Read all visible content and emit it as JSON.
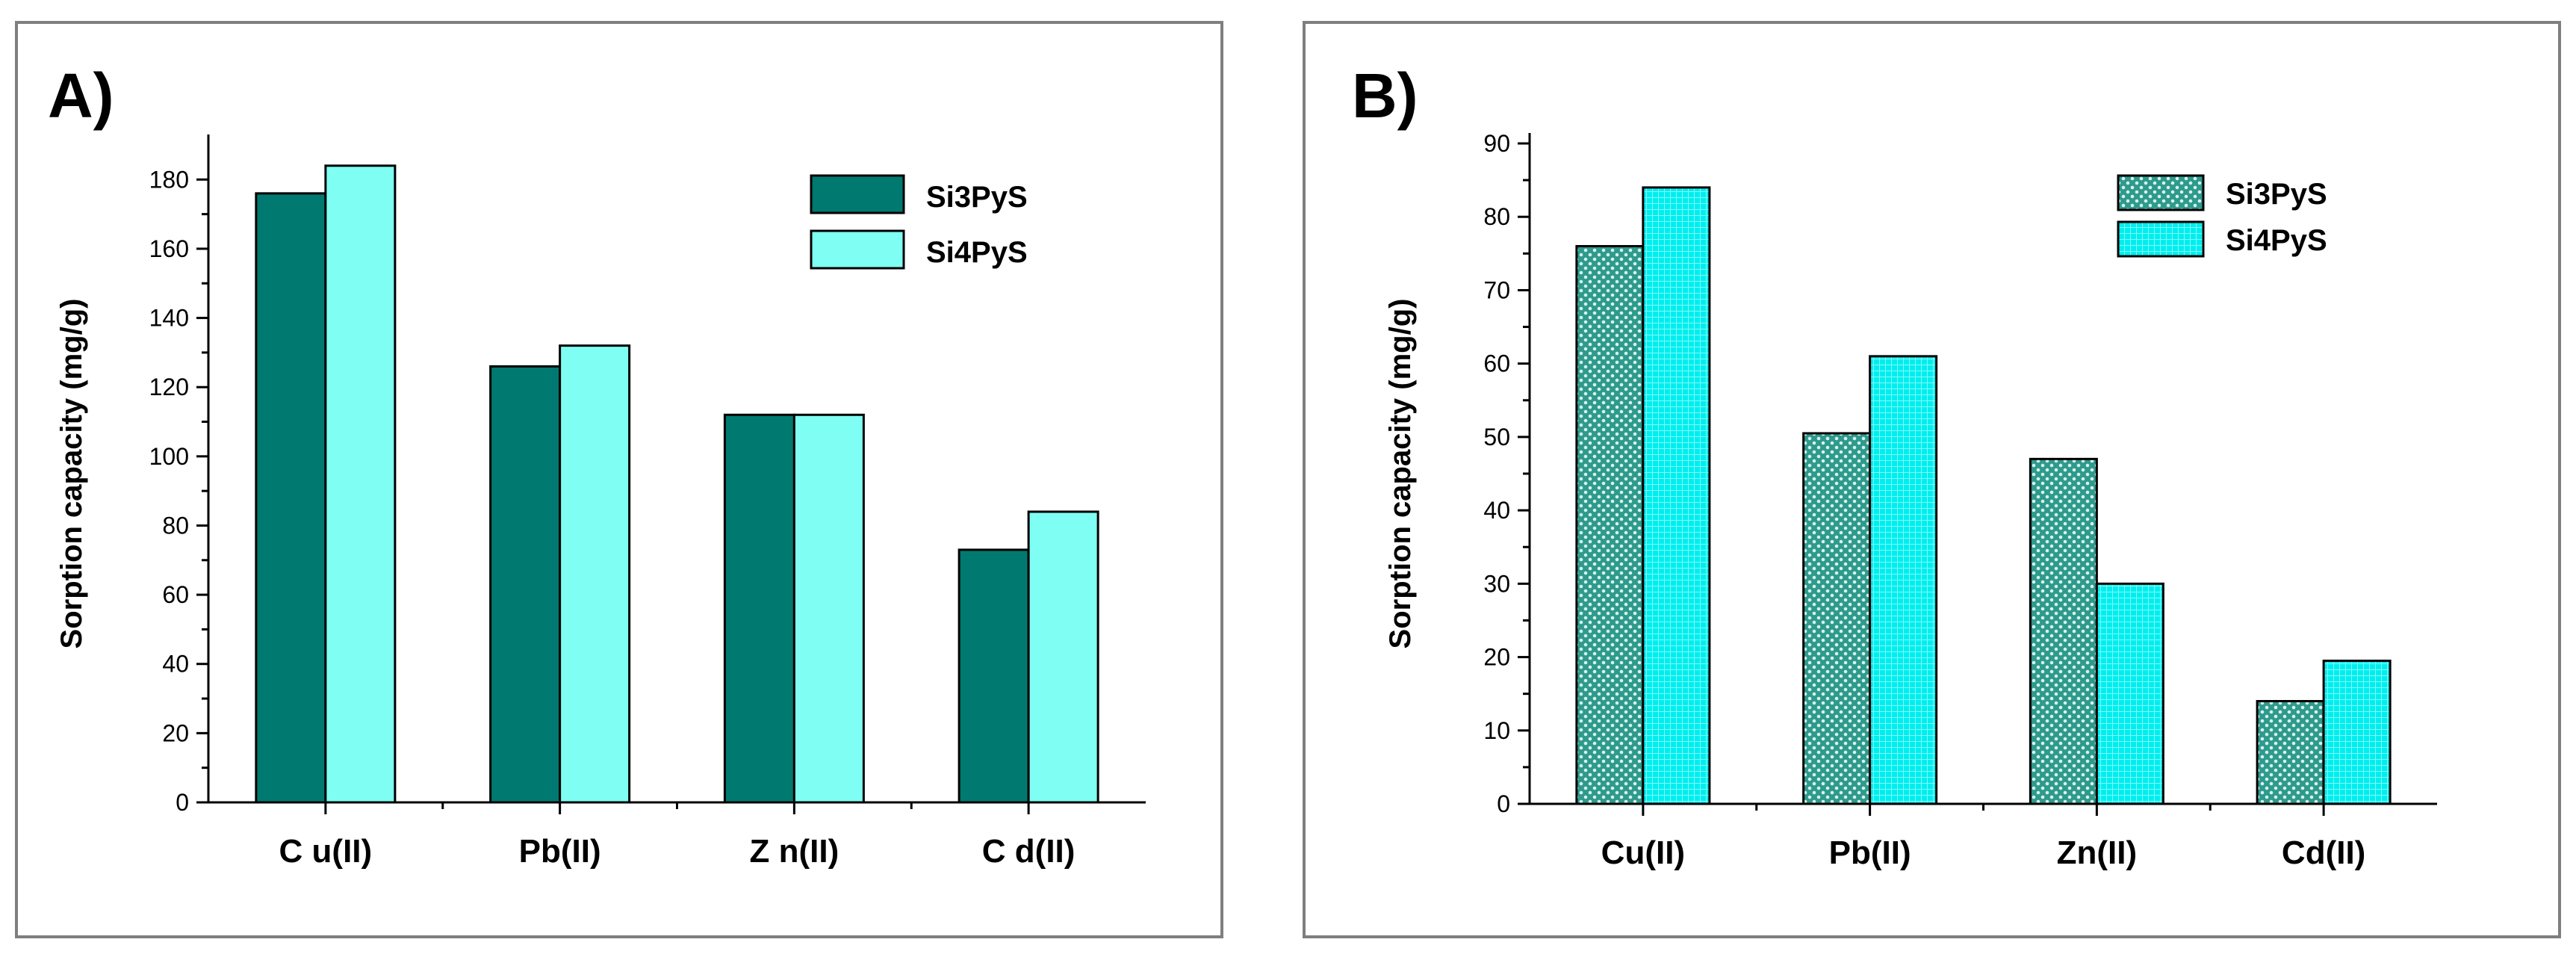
{
  "figure": {
    "panel_a_label": "A)",
    "panel_b_label": "B)"
  },
  "chart_data": [
    {
      "type": "bar",
      "title": "",
      "xlabel": "",
      "ylabel": "Sorption capacity (mg/g)",
      "categories": [
        "C u(II)",
        "Pb(II)",
        "Z n(II)",
        "C d(II)"
      ],
      "series": [
        {
          "name": "Si3PyS",
          "values": [
            176,
            126,
            112,
            73
          ],
          "color": "#007a70",
          "pattern": "solid"
        },
        {
          "name": "Si4PyS",
          "values": [
            184,
            132,
            112,
            84
          ],
          "color": "#7ffff4",
          "pattern": "solid"
        }
      ],
      "ylim": [
        0,
        190
      ],
      "yticks": [
        0,
        20,
        40,
        60,
        80,
        100,
        120,
        140,
        160,
        180
      ],
      "grid": false,
      "legend": "top-right"
    },
    {
      "type": "bar",
      "title": "",
      "xlabel": "",
      "ylabel": "Sorption capacity (mg/g)",
      "categories": [
        "Cu(II)",
        "Pb(II)",
        "Zn(II)",
        "Cd(II)"
      ],
      "series": [
        {
          "name": "Si3PyS",
          "values": [
            76,
            50.5,
            47,
            14
          ],
          "color": "#2e9a8c",
          "pattern": "dots"
        },
        {
          "name": "Si4PyS",
          "values": [
            84,
            61,
            30,
            19.5
          ],
          "color": "#00f0f0",
          "pattern": "fine-grid"
        }
      ],
      "ylim": [
        0,
        90
      ],
      "yticks": [
        0,
        10,
        20,
        30,
        40,
        50,
        60,
        70,
        80,
        90
      ],
      "grid": false,
      "legend": "top-right"
    }
  ]
}
